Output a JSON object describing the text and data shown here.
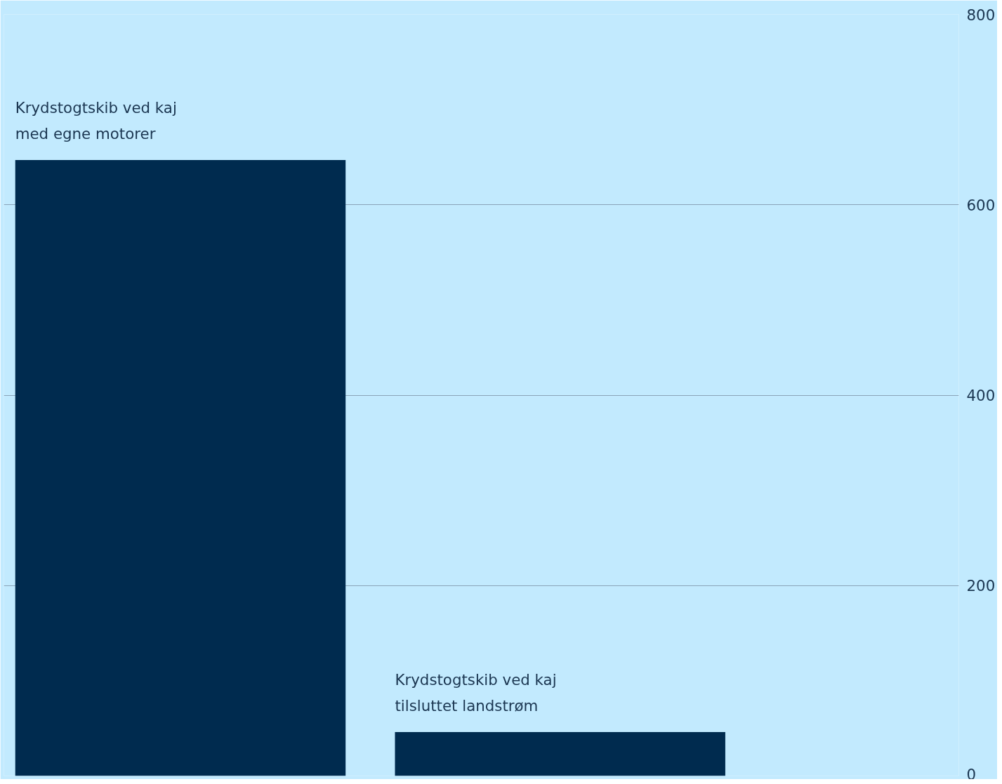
{
  "chart_data": {
    "type": "bar",
    "categories": [
      "Krydstogtskib ved kaj\nmed egne motorer",
      "Krydstogtskib ved kaj\ntilsluttet landstrøm"
    ],
    "values": [
      647,
      46
    ],
    "color": "#002b4f",
    "ylim": [
      0,
      800
    ],
    "yticks": [
      0,
      200,
      400,
      600,
      800
    ],
    "grid": "y",
    "tick_labels": "y"
  }
}
